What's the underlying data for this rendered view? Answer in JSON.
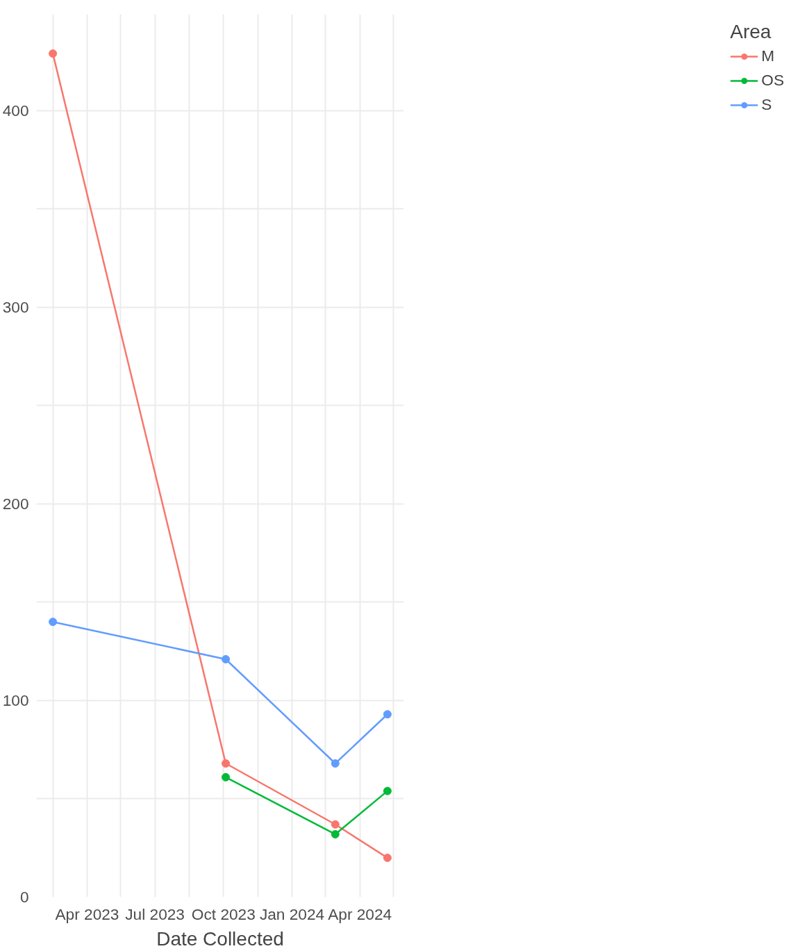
{
  "chart_data": {
    "type": "line",
    "xlabel": "Date Collected",
    "legend_title": "Area",
    "xlim": [
      "2023-01-23",
      "2024-05-30"
    ],
    "ylim": [
      0,
      449
    ],
    "xticks": [
      {
        "value": "2023-02-14",
        "label": null
      },
      {
        "value": "2023-04-01",
        "label": "Apr 2023"
      },
      {
        "value": "2023-05-16",
        "label": null
      },
      {
        "value": "2023-07-01",
        "label": "Jul 2023"
      },
      {
        "value": "2023-08-16",
        "label": null
      },
      {
        "value": "2023-10-01",
        "label": "Oct 2023"
      },
      {
        "value": "2023-11-16",
        "label": null
      },
      {
        "value": "2024-01-01",
        "label": "Jan 2024"
      },
      {
        "value": "2024-02-15",
        "label": null
      },
      {
        "value": "2024-04-01",
        "label": "Apr 2024"
      },
      {
        "value": "2024-05-16",
        "label": null
      }
    ],
    "yticks": [
      0,
      {
        "value": 50,
        "label": null
      },
      100,
      {
        "value": 150,
        "label": null
      },
      200,
      {
        "value": 250,
        "label": null
      },
      300,
      {
        "value": 350,
        "label": null
      },
      400
    ],
    "grid": true,
    "legend": "right",
    "marker": "circle",
    "line_style": "solid",
    "series": [
      {
        "name": "M",
        "color": "#f8766d",
        "x": [
          "2023-02-14",
          "2023-10-04",
          "2024-02-28",
          "2024-05-08"
        ],
        "values": [
          429,
          68,
          37,
          20
        ]
      },
      {
        "name": "OS",
        "color": "#00ba38",
        "x": [
          "2023-10-04",
          "2024-02-28",
          "2024-05-08"
        ],
        "values": [
          61,
          32,
          54
        ]
      },
      {
        "name": "S",
        "color": "#619cff",
        "x": [
          "2023-02-14",
          "2023-10-04",
          "2024-02-28",
          "2024-05-08"
        ],
        "values": [
          140,
          121,
          68,
          93
        ]
      }
    ]
  }
}
